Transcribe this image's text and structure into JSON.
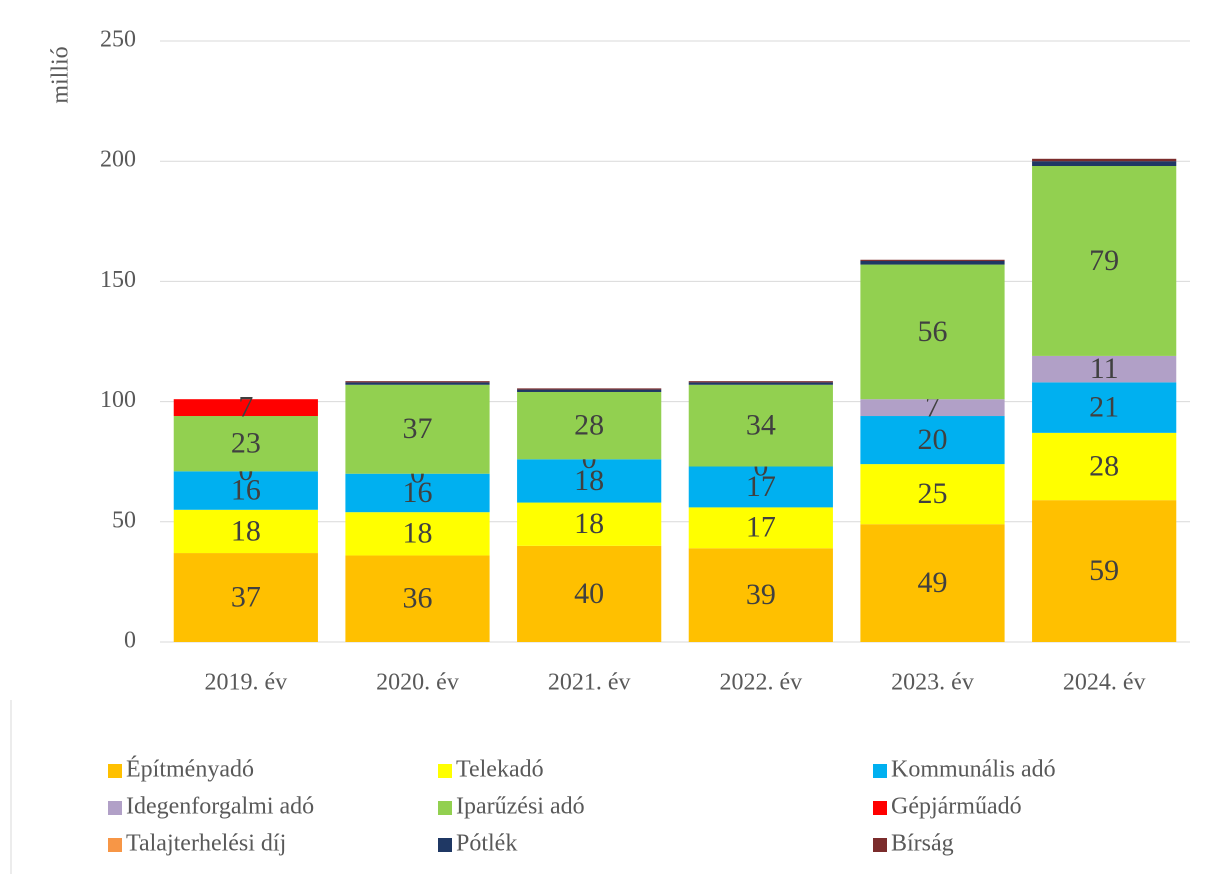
{
  "chart_data": {
    "type": "stacked_bar",
    "y_label": "millió",
    "categories": [
      "2019. év",
      "2020. év",
      "2021. év",
      "2022. év",
      "2023. év",
      "2024. év"
    ],
    "series": [
      {
        "name": "Építményadó",
        "color": "#ffc000",
        "values": [
          37,
          36,
          40,
          39,
          49,
          59
        ],
        "data_labels": true
      },
      {
        "name": "Telekadó",
        "color": "#ffff00",
        "values": [
          18,
          18,
          18,
          17,
          25,
          28
        ],
        "data_labels": true
      },
      {
        "name": "Kommunális adó",
        "color": "#00b0f0",
        "values": [
          16,
          16,
          18,
          17,
          20,
          21
        ],
        "data_labels": true
      },
      {
        "name": "Idegenforgalmi adó",
        "color": "#b1a0c7",
        "values": [
          0,
          0,
          0,
          0,
          7,
          11
        ],
        "data_labels": true
      },
      {
        "name": "Iparűzési adó",
        "color": "#92d050",
        "values": [
          23,
          37,
          28,
          34,
          56,
          79
        ],
        "data_labels": true
      },
      {
        "name": "Gépjárműadó",
        "color": "#ff0000",
        "values": [
          7,
          null,
          null,
          null,
          null,
          null
        ],
        "data_labels": true
      },
      {
        "name": "Talajterhelési díj",
        "color": "#f79646",
        "values": [
          0,
          0,
          0,
          0,
          0,
          0
        ],
        "data_labels": false
      },
      {
        "name": "Pótlék",
        "color": "#1f3864",
        "values": [
          0,
          1,
          1,
          1,
          1.5,
          2
        ],
        "data_labels": false
      },
      {
        "name": "Bírság",
        "color": "#7b2c2c",
        "values": [
          0,
          0.5,
          0.5,
          0.5,
          0.5,
          1
        ],
        "data_labels": false
      }
    ],
    "ylim": [
      0,
      250
    ],
    "yticks": [
      0,
      50,
      100,
      150,
      200,
      250
    ],
    "grid": true,
    "legend": "bottom"
  }
}
